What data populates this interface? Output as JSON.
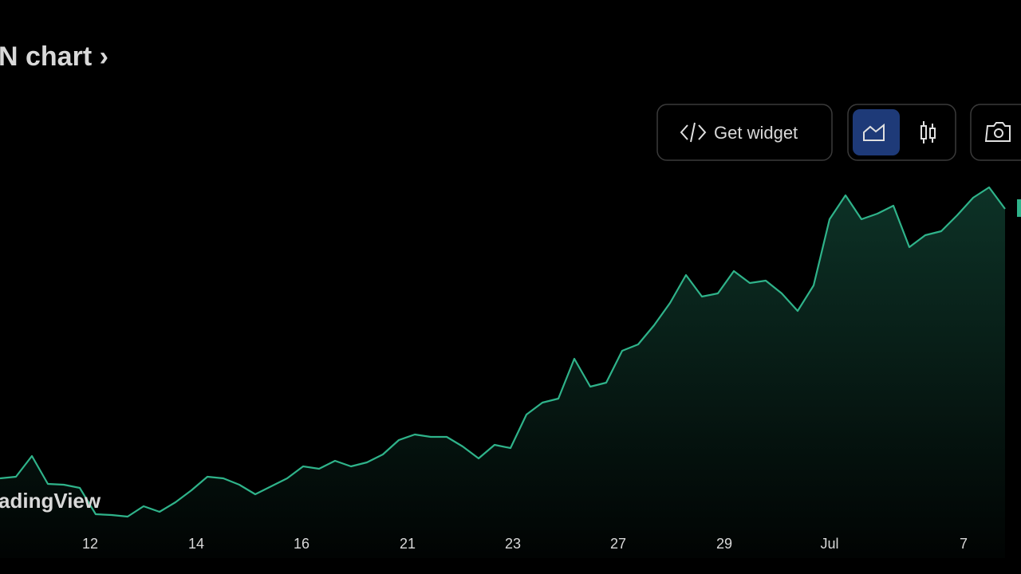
{
  "header": {
    "title": "N chart ›"
  },
  "toolbar": {
    "widget_button": "Get widget"
  },
  "chart_data": {
    "type": "line",
    "watermark": "adingView",
    "color": "#2fb38a",
    "values": [
      100,
      102,
      128,
      93,
      92,
      88,
      55,
      54,
      52,
      65,
      58,
      70,
      85,
      102,
      100,
      92,
      80,
      90,
      100,
      115,
      112,
      122,
      115,
      120,
      130,
      148,
      155,
      152,
      152,
      140,
      125,
      142,
      138,
      180,
      195,
      200,
      250,
      215,
      220,
      260,
      268,
      292,
      320,
      355,
      328,
      332,
      360,
      345,
      348,
      332,
      310,
      342,
      425,
      455,
      425,
      432,
      442,
      390,
      405,
      410,
      430,
      452,
      465,
      438
    ],
    "xlim": [
      0,
      64
    ],
    "ylim": [
      0,
      700
    ],
    "xticks": [
      {
        "value": 5.65,
        "label": "12"
      },
      {
        "value": 12.3,
        "label": "14"
      },
      {
        "value": 18.9,
        "label": "16"
      },
      {
        "value": 25.55,
        "label": "21"
      },
      {
        "value": 32.15,
        "label": "23"
      },
      {
        "value": 38.75,
        "label": "27"
      },
      {
        "value": 45.4,
        "label": "29"
      },
      {
        "value": 52,
        "label": "Jul"
      },
      {
        "value": 60.4,
        "label": "7"
      }
    ]
  }
}
